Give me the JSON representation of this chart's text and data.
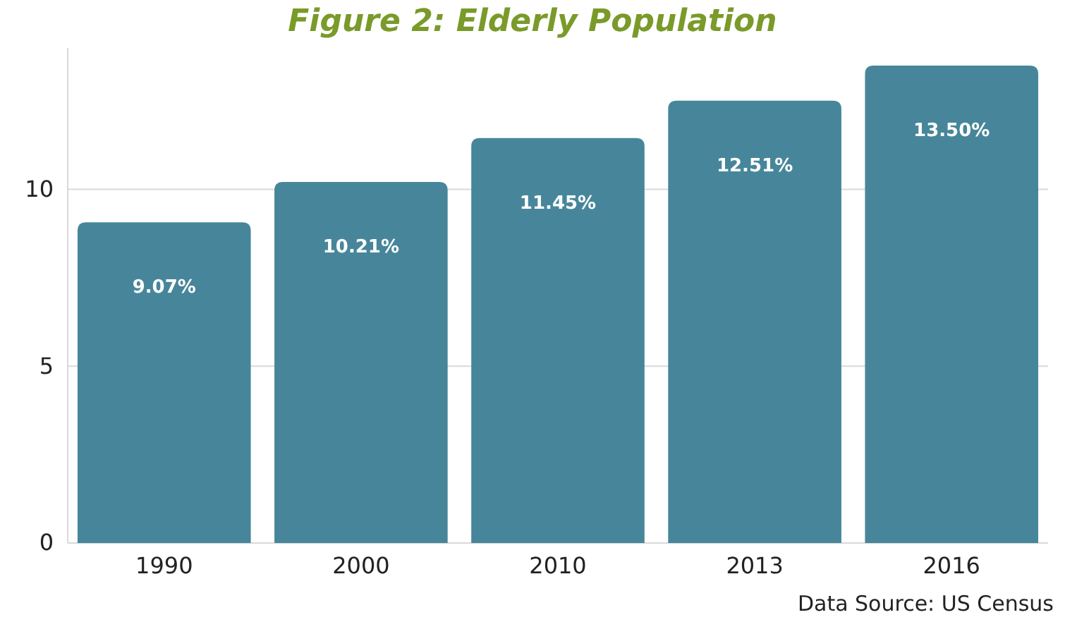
{
  "chart_data": {
    "type": "bar",
    "title": "Figure 2: Elderly Population",
    "categories": [
      "1990",
      "2000",
      "2010",
      "2013",
      "2016"
    ],
    "values": [
      9.07,
      10.21,
      11.45,
      12.51,
      13.5
    ],
    "color": "#47869a",
    "value_labels": [
      "9.07%",
      "10.21%",
      "11.45%",
      "12.51%",
      "13.50%"
    ],
    "ylim": [
      0,
      14
    ],
    "yticks": [
      0,
      5,
      10
    ],
    "grid": "y",
    "annotations": [
      "Data Source: US Census"
    ]
  }
}
